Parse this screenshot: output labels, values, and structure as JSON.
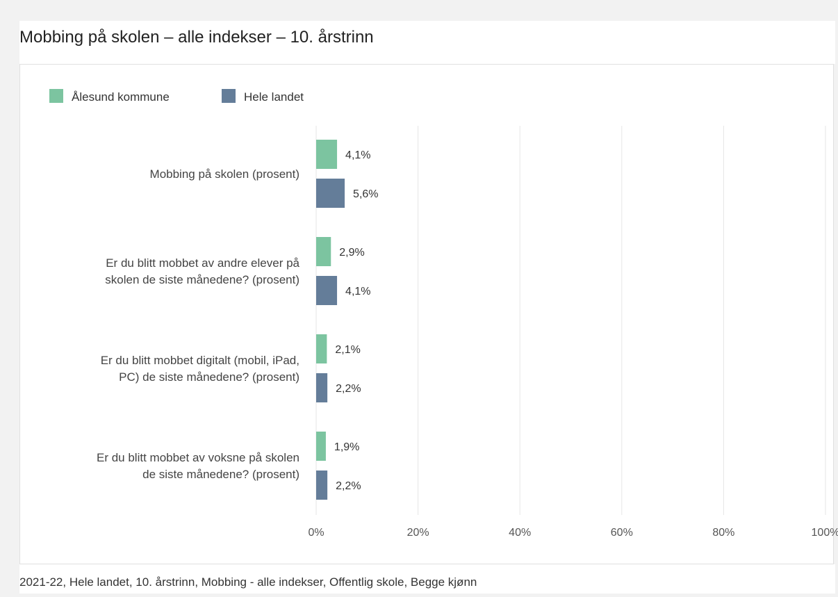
{
  "title": "Mobbing på skolen – alle indekser – 10. årstrinn",
  "footer": "2021-22, Hele landet, 10. årstrinn, Mobbing - alle indekser, Offentlig skole, Begge kjønn",
  "colors": {
    "series_1": "#7cc4a0",
    "series_2": "#647d99",
    "grid": "#e6e6e6",
    "axis_text": "#555555",
    "label_text": "#444444"
  },
  "chart_data": {
    "type": "bar",
    "orientation": "horizontal",
    "categories": [
      [
        "Mobbing på skolen (prosent)"
      ],
      [
        "Er du blitt mobbet av andre elever på",
        "skolen de siste månedene? (prosent)"
      ],
      [
        "Er du blitt mobbet digitalt (mobil, iPad,",
        "PC) de siste månedene? (prosent)"
      ],
      [
        "Er du blitt mobbet av voksne på skolen",
        "de siste månedene? (prosent)"
      ]
    ],
    "series": [
      {
        "name": "Ålesund kommune",
        "values": [
          4.1,
          2.9,
          2.1,
          1.9
        ],
        "labels": [
          "4,1%",
          "2,9%",
          "2,1%",
          "1,9%"
        ]
      },
      {
        "name": "Hele landet",
        "values": [
          5.6,
          4.1,
          2.2,
          2.2
        ],
        "labels": [
          "5,6%",
          "4,1%",
          "2,2%",
          "2,2%"
        ]
      }
    ],
    "xlim": [
      0,
      100
    ],
    "xticks": [
      "0%",
      "20%",
      "40%",
      "60%",
      "80%",
      "100%"
    ],
    "grid": true,
    "legend_position": "top-left"
  }
}
